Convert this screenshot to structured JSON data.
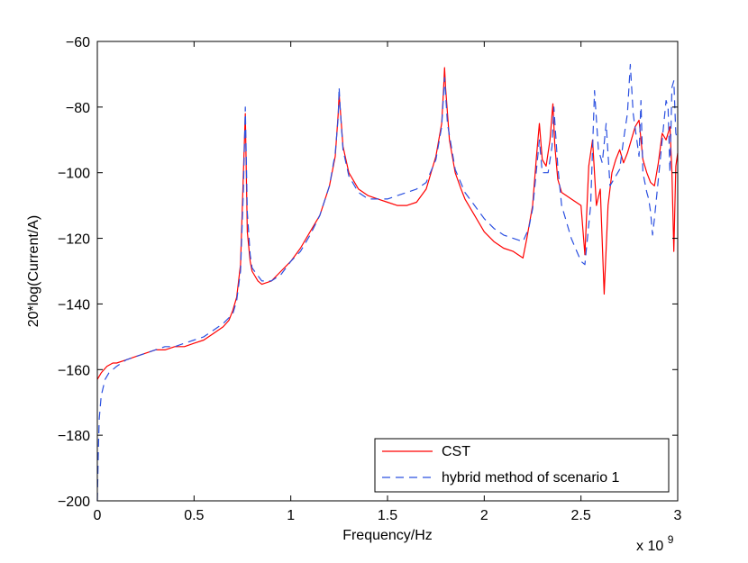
{
  "chart_data": {
    "type": "line",
    "title": "",
    "xlabel": "Frequency/Hz",
    "ylabel": "20*log(Current/A)",
    "x_multiplier_label": "x 10",
    "x_multiplier_exponent": "9",
    "xlim": [
      0,
      3
    ],
    "ylim": [
      -200,
      -60
    ],
    "xticks": [
      0,
      0.5,
      1,
      1.5,
      2,
      2.5,
      3
    ],
    "xtick_labels": [
      "0",
      "0.5",
      "1",
      "1.5",
      "2",
      "2.5",
      "3"
    ],
    "yticks": [
      -200,
      -180,
      -160,
      -140,
      -120,
      -100,
      -80,
      -60
    ],
    "ytick_labels": [
      "−200",
      "−180",
      "−160",
      "−140",
      "−120",
      "−100",
      "−80",
      "−60"
    ],
    "grid": false,
    "legend_position": "bottom-right",
    "series": [
      {
        "name": "CST",
        "color": "#ff0000",
        "style": "solid",
        "points": [
          [
            0,
            -163
          ],
          [
            0.02,
            -161
          ],
          [
            0.05,
            -159
          ],
          [
            0.08,
            -158
          ],
          [
            0.1,
            -158
          ],
          [
            0.15,
            -157
          ],
          [
            0.2,
            -156
          ],
          [
            0.25,
            -155
          ],
          [
            0.3,
            -154
          ],
          [
            0.35,
            -154
          ],
          [
            0.4,
            -153
          ],
          [
            0.45,
            -153
          ],
          [
            0.5,
            -152
          ],
          [
            0.55,
            -151
          ],
          [
            0.6,
            -149
          ],
          [
            0.65,
            -147
          ],
          [
            0.68,
            -145
          ],
          [
            0.7,
            -142
          ],
          [
            0.72,
            -138
          ],
          [
            0.74,
            -128
          ],
          [
            0.755,
            -100
          ],
          [
            0.765,
            -82
          ],
          [
            0.775,
            -118
          ],
          [
            0.79,
            -127
          ],
          [
            0.8,
            -130
          ],
          [
            0.83,
            -133
          ],
          [
            0.85,
            -134
          ],
          [
            0.9,
            -133
          ],
          [
            0.95,
            -130
          ],
          [
            1.0,
            -127
          ],
          [
            1.05,
            -123
          ],
          [
            1.1,
            -118
          ],
          [
            1.15,
            -113
          ],
          [
            1.2,
            -104
          ],
          [
            1.23,
            -95
          ],
          [
            1.245,
            -82
          ],
          [
            1.25,
            -76
          ],
          [
            1.255,
            -80
          ],
          [
            1.27,
            -92
          ],
          [
            1.3,
            -100
          ],
          [
            1.35,
            -105
          ],
          [
            1.4,
            -107
          ],
          [
            1.45,
            -108
          ],
          [
            1.5,
            -109
          ],
          [
            1.55,
            -110
          ],
          [
            1.6,
            -110
          ],
          [
            1.65,
            -109
          ],
          [
            1.7,
            -105
          ],
          [
            1.75,
            -95
          ],
          [
            1.78,
            -85
          ],
          [
            1.79,
            -74
          ],
          [
            1.795,
            -68
          ],
          [
            1.8,
            -74
          ],
          [
            1.82,
            -90
          ],
          [
            1.85,
            -100
          ],
          [
            1.88,
            -105
          ],
          [
            1.9,
            -108
          ],
          [
            1.95,
            -113
          ],
          [
            2.0,
            -118
          ],
          [
            2.05,
            -121
          ],
          [
            2.1,
            -123
          ],
          [
            2.15,
            -124
          ],
          [
            2.2,
            -126
          ],
          [
            2.22,
            -120
          ],
          [
            2.25,
            -110
          ],
          [
            2.27,
            -95
          ],
          [
            2.285,
            -85
          ],
          [
            2.3,
            -96
          ],
          [
            2.32,
            -98
          ],
          [
            2.34,
            -90
          ],
          [
            2.355,
            -79
          ],
          [
            2.365,
            -92
          ],
          [
            2.38,
            -102
          ],
          [
            2.4,
            -106
          ],
          [
            2.45,
            -108
          ],
          [
            2.5,
            -110
          ],
          [
            2.52,
            -125
          ],
          [
            2.54,
            -98
          ],
          [
            2.56,
            -90
          ],
          [
            2.58,
            -110
          ],
          [
            2.6,
            -105
          ],
          [
            2.62,
            -137
          ],
          [
            2.64,
            -110
          ],
          [
            2.66,
            -100
          ],
          [
            2.68,
            -96
          ],
          [
            2.7,
            -93
          ],
          [
            2.72,
            -97
          ],
          [
            2.74,
            -94
          ],
          [
            2.76,
            -90
          ],
          [
            2.78,
            -86
          ],
          [
            2.8,
            -84
          ],
          [
            2.82,
            -96
          ],
          [
            2.84,
            -100
          ],
          [
            2.86,
            -103
          ],
          [
            2.88,
            -104
          ],
          [
            2.9,
            -97
          ],
          [
            2.92,
            -88
          ],
          [
            2.94,
            -90
          ],
          [
            2.96,
            -86
          ],
          [
            2.97,
            -100
          ],
          [
            2.98,
            -124
          ],
          [
            2.99,
            -98
          ],
          [
            3.0,
            -94
          ]
        ]
      },
      {
        "name": "hybrid method of scenario 1",
        "color": "#2b50e0",
        "style": "dashed",
        "points": [
          [
            0,
            -200
          ],
          [
            0.005,
            -185
          ],
          [
            0.01,
            -175
          ],
          [
            0.02,
            -168
          ],
          [
            0.04,
            -163
          ],
          [
            0.06,
            -161
          ],
          [
            0.1,
            -159
          ],
          [
            0.15,
            -157
          ],
          [
            0.2,
            -156
          ],
          [
            0.25,
            -155
          ],
          [
            0.3,
            -154
          ],
          [
            0.35,
            -153
          ],
          [
            0.4,
            -153
          ],
          [
            0.45,
            -152
          ],
          [
            0.5,
            -151
          ],
          [
            0.55,
            -150
          ],
          [
            0.6,
            -148
          ],
          [
            0.65,
            -146
          ],
          [
            0.7,
            -143
          ],
          [
            0.72,
            -139
          ],
          [
            0.74,
            -130
          ],
          [
            0.755,
            -105
          ],
          [
            0.765,
            -80
          ],
          [
            0.775,
            -112
          ],
          [
            0.79,
            -125
          ],
          [
            0.8,
            -129
          ],
          [
            0.85,
            -133
          ],
          [
            0.9,
            -133
          ],
          [
            0.95,
            -131
          ],
          [
            1.0,
            -127
          ],
          [
            1.05,
            -124
          ],
          [
            1.1,
            -119
          ],
          [
            1.15,
            -113
          ],
          [
            1.2,
            -104
          ],
          [
            1.23,
            -94
          ],
          [
            1.245,
            -83
          ],
          [
            1.25,
            -74
          ],
          [
            1.255,
            -80
          ],
          [
            1.27,
            -93
          ],
          [
            1.3,
            -101
          ],
          [
            1.35,
            -106
          ],
          [
            1.4,
            -108
          ],
          [
            1.45,
            -108
          ],
          [
            1.5,
            -108
          ],
          [
            1.55,
            -107
          ],
          [
            1.6,
            -106
          ],
          [
            1.65,
            -105
          ],
          [
            1.7,
            -103
          ],
          [
            1.75,
            -96
          ],
          [
            1.78,
            -86
          ],
          [
            1.795,
            -71
          ],
          [
            1.81,
            -85
          ],
          [
            1.85,
            -99
          ],
          [
            1.9,
            -106
          ],
          [
            1.95,
            -110
          ],
          [
            2.0,
            -114
          ],
          [
            2.05,
            -117
          ],
          [
            2.1,
            -119
          ],
          [
            2.15,
            -120
          ],
          [
            2.2,
            -121
          ],
          [
            2.23,
            -117
          ],
          [
            2.25,
            -111
          ],
          [
            2.27,
            -99
          ],
          [
            2.285,
            -90
          ],
          [
            2.3,
            -100
          ],
          [
            2.33,
            -100
          ],
          [
            2.35,
            -92
          ],
          [
            2.36,
            -80
          ],
          [
            2.38,
            -98
          ],
          [
            2.4,
            -110
          ],
          [
            2.45,
            -120
          ],
          [
            2.5,
            -127
          ],
          [
            2.52,
            -128
          ],
          [
            2.55,
            -110
          ],
          [
            2.57,
            -75
          ],
          [
            2.59,
            -93
          ],
          [
            2.61,
            -97
          ],
          [
            2.63,
            -85
          ],
          [
            2.65,
            -104
          ],
          [
            2.67,
            -102
          ],
          [
            2.7,
            -99
          ],
          [
            2.72,
            -90
          ],
          [
            2.74,
            -82
          ],
          [
            2.755,
            -67
          ],
          [
            2.77,
            -82
          ],
          [
            2.8,
            -95
          ],
          [
            2.81,
            -78
          ],
          [
            2.82,
            -100
          ],
          [
            2.84,
            -106
          ],
          [
            2.85,
            -108
          ],
          [
            2.86,
            -112
          ],
          [
            2.87,
            -119
          ],
          [
            2.88,
            -114
          ],
          [
            2.9,
            -102
          ],
          [
            2.92,
            -90
          ],
          [
            2.94,
            -78
          ],
          [
            2.95,
            -80
          ],
          [
            2.96,
            -100
          ],
          [
            2.97,
            -74
          ],
          [
            2.98,
            -72
          ],
          [
            2.99,
            -88
          ],
          [
            3.0,
            -90
          ]
        ]
      }
    ]
  }
}
